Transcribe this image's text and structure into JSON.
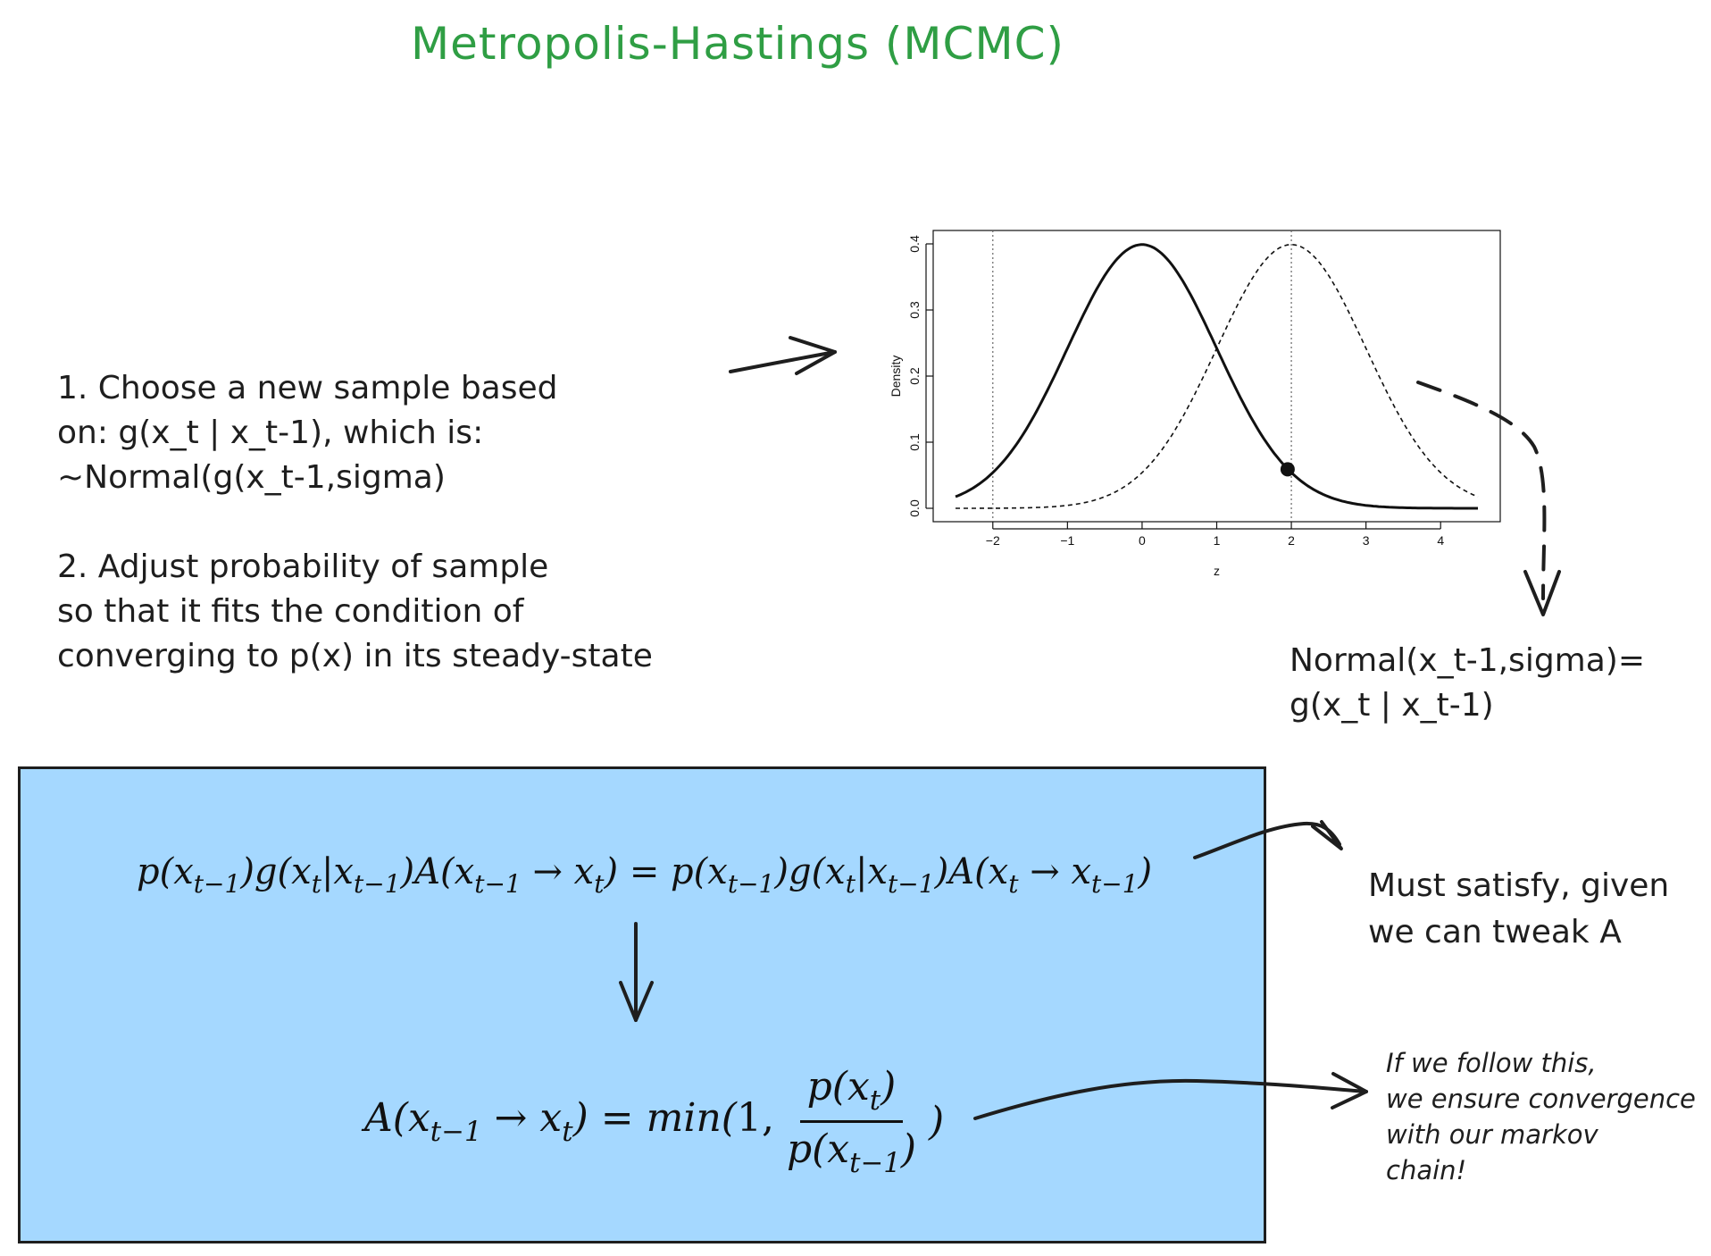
{
  "title": "Metropolis-Hastings (MCMC)",
  "step1": {
    "lines": [
      "1. Choose a new sample based",
      "on: g(x_t | x_t-1), which is:",
      "~Normal(g(x_t-1,sigma)"
    ]
  },
  "step2": {
    "lines": [
      "2. Adjust probability of sample",
      "so that it fits the condition of",
      "converging to p(x) in its steady-state"
    ]
  },
  "normal_note": {
    "lines": [
      "Normal(x_t-1,sigma)=",
      "g(x_t | x_t-1)"
    ]
  },
  "satisfy_note": {
    "lines": [
      "Must satisfy, given",
      "we can tweak A"
    ]
  },
  "converge_note": {
    "lines": [
      "If we follow this,",
      "we ensure convergence",
      "with our markov",
      "chain!"
    ]
  },
  "colors": {
    "title": "#2f9e44",
    "box_fill": "#a5d8ff",
    "ink": "#1e1e1e"
  },
  "chart_data": {
    "type": "line",
    "xlabel": "z",
    "ylabel": "Density",
    "xlim": [
      -2.5,
      4.5
    ],
    "ylim": [
      0,
      0.4
    ],
    "xticks": [
      "−2",
      "−1",
      "0",
      "1",
      "2",
      "3",
      "4"
    ],
    "xtick_values": [
      -2,
      -1,
      0,
      1,
      2,
      3,
      4
    ],
    "yticks": [
      "0.0",
      "0.1",
      "0.2",
      "0.3",
      "0.4"
    ],
    "ytick_values": [
      0,
      0.1,
      0.2,
      0.3,
      0.4
    ],
    "series": [
      {
        "style": "solid",
        "mean": 0,
        "sd": 1
      },
      {
        "style": "dashed",
        "mean": 2,
        "sd": 1
      }
    ],
    "vlines": [
      -2,
      2
    ],
    "marker": {
      "x": 1.95,
      "y": 0.059
    }
  }
}
